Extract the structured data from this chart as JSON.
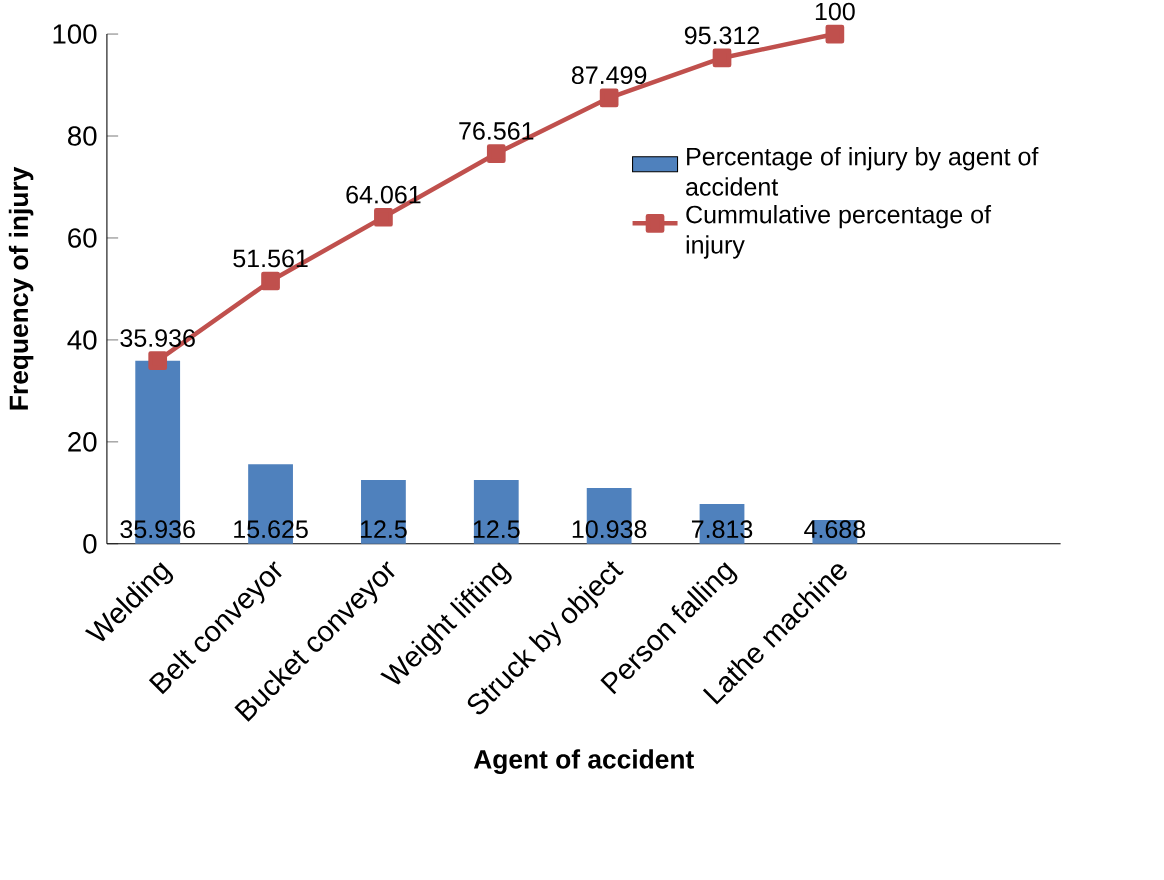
{
  "chart_data": {
    "type": "bar",
    "xlabel": "Agent of accident",
    "ylabel": "Frequency of injury",
    "categories": [
      "Welding",
      "Belt conveyor",
      "Bucket conveyor",
      "Weight lifting",
      "Struck by object",
      "Person falling",
      "Lathe machine"
    ],
    "series": [
      {
        "name": "Percentage of injury by agent of accident",
        "color": "#4f81bd",
        "values": [
          35.936,
          15.625,
          12.5,
          12.5,
          10.938,
          7.813,
          4.688
        ]
      },
      {
        "name": "Cummulative percentage of injury",
        "type": "line",
        "color": "#c0504d",
        "marker": "square",
        "line_style": "solid",
        "values": [
          35.936,
          51.561,
          64.061,
          76.561,
          87.499,
          95.312,
          100
        ]
      }
    ],
    "ylim": [
      0,
      100
    ],
    "yticks": [
      0,
      20,
      40,
      60,
      80,
      100
    ],
    "grid": false,
    "legend": "right",
    "data_labels": true
  }
}
